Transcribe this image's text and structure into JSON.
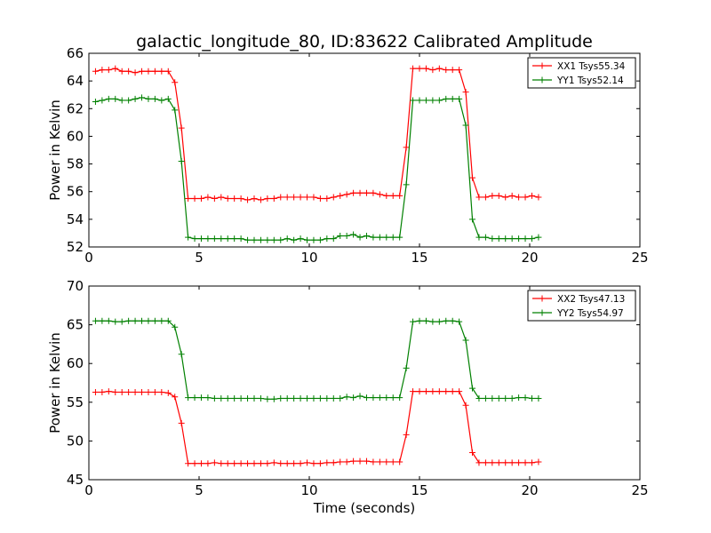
{
  "chart_data": [
    {
      "type": "line",
      "title": "galactic_longitude_80, ID:83622 Calibrated Amplitude",
      "xlabel": "",
      "ylabel": "Power in Kelvin",
      "xlim": [
        0,
        25
      ],
      "ylim": [
        52,
        66
      ],
      "xticks": [
        0,
        5,
        10,
        15,
        20,
        25
      ],
      "yticks": [
        52,
        54,
        56,
        58,
        60,
        62,
        64,
        66
      ],
      "grid": false,
      "legend_position": "top-right",
      "series": [
        {
          "name": "XX1 Tsys55.34",
          "color": "#ff0000",
          "x": [
            0.3,
            0.6,
            0.9,
            1.2,
            1.5,
            1.8,
            2.1,
            2.4,
            2.7,
            3.0,
            3.3,
            3.6,
            3.9,
            4.2,
            4.5,
            4.8,
            5.1,
            5.4,
            5.7,
            6.0,
            6.3,
            6.6,
            6.9,
            7.2,
            7.5,
            7.8,
            8.1,
            8.4,
            8.7,
            9.0,
            9.3,
            9.6,
            9.9,
            10.2,
            10.5,
            10.8,
            11.1,
            11.4,
            11.7,
            12.0,
            12.3,
            12.6,
            12.9,
            13.2,
            13.5,
            13.8,
            14.1,
            14.4,
            14.7,
            15.0,
            15.3,
            15.6,
            15.9,
            16.2,
            16.5,
            16.8,
            17.1,
            17.4,
            17.7,
            18.0,
            18.3,
            18.6,
            18.9,
            19.2,
            19.5,
            19.8,
            20.1,
            20.4
          ],
          "y": [
            64.7,
            64.8,
            64.8,
            64.9,
            64.7,
            64.7,
            64.6,
            64.7,
            64.7,
            64.7,
            64.7,
            64.7,
            63.9,
            60.6,
            55.5,
            55.5,
            55.5,
            55.6,
            55.5,
            55.6,
            55.5,
            55.5,
            55.5,
            55.4,
            55.5,
            55.4,
            55.5,
            55.5,
            55.6,
            55.6,
            55.6,
            55.6,
            55.6,
            55.6,
            55.5,
            55.5,
            55.6,
            55.7,
            55.8,
            55.9,
            55.9,
            55.9,
            55.9,
            55.8,
            55.7,
            55.7,
            55.7,
            59.2,
            64.9,
            64.9,
            64.9,
            64.8,
            64.9,
            64.8,
            64.8,
            64.8,
            63.2,
            57.0,
            55.6,
            55.6,
            55.7,
            55.7,
            55.6,
            55.7,
            55.6,
            55.6,
            55.7,
            55.6
          ]
        },
        {
          "name": "YY1 Tsys52.14",
          "color": "#008000",
          "x": [
            0.3,
            0.6,
            0.9,
            1.2,
            1.5,
            1.8,
            2.1,
            2.4,
            2.7,
            3.0,
            3.3,
            3.6,
            3.9,
            4.2,
            4.5,
            4.8,
            5.1,
            5.4,
            5.7,
            6.0,
            6.3,
            6.6,
            6.9,
            7.2,
            7.5,
            7.8,
            8.1,
            8.4,
            8.7,
            9.0,
            9.3,
            9.6,
            9.9,
            10.2,
            10.5,
            10.8,
            11.1,
            11.4,
            11.7,
            12.0,
            12.3,
            12.6,
            12.9,
            13.2,
            13.5,
            13.8,
            14.1,
            14.4,
            14.7,
            15.0,
            15.3,
            15.6,
            15.9,
            16.2,
            16.5,
            16.8,
            17.1,
            17.4,
            17.7,
            18.0,
            18.3,
            18.6,
            18.9,
            19.2,
            19.5,
            19.8,
            20.1,
            20.4
          ],
          "y": [
            62.5,
            62.6,
            62.7,
            62.7,
            62.6,
            62.6,
            62.7,
            62.8,
            62.7,
            62.7,
            62.6,
            62.7,
            61.9,
            58.2,
            52.7,
            52.6,
            52.6,
            52.6,
            52.6,
            52.6,
            52.6,
            52.6,
            52.6,
            52.5,
            52.5,
            52.5,
            52.5,
            52.5,
            52.5,
            52.6,
            52.5,
            52.6,
            52.5,
            52.5,
            52.5,
            52.6,
            52.6,
            52.8,
            52.8,
            52.9,
            52.7,
            52.8,
            52.7,
            52.7,
            52.7,
            52.7,
            52.7,
            56.5,
            62.6,
            62.6,
            62.6,
            62.6,
            62.6,
            62.7,
            62.7,
            62.7,
            60.8,
            54.0,
            52.7,
            52.7,
            52.6,
            52.6,
            52.6,
            52.6,
            52.6,
            52.6,
            52.6,
            52.7
          ]
        }
      ]
    },
    {
      "type": "line",
      "title": "",
      "xlabel": "Time (seconds)",
      "ylabel": "Power in Kelvin",
      "xlim": [
        0,
        25
      ],
      "ylim": [
        45,
        70
      ],
      "xticks": [
        0,
        5,
        10,
        15,
        20,
        25
      ],
      "yticks": [
        45,
        50,
        55,
        60,
        65,
        70
      ],
      "grid": false,
      "legend_position": "top-right",
      "series": [
        {
          "name": "XX2 Tsys47.13",
          "color": "#ff0000",
          "x": [
            0.3,
            0.6,
            0.9,
            1.2,
            1.5,
            1.8,
            2.1,
            2.4,
            2.7,
            3.0,
            3.3,
            3.6,
            3.9,
            4.2,
            4.5,
            4.8,
            5.1,
            5.4,
            5.7,
            6.0,
            6.3,
            6.6,
            6.9,
            7.2,
            7.5,
            7.8,
            8.1,
            8.4,
            8.7,
            9.0,
            9.3,
            9.6,
            9.9,
            10.2,
            10.5,
            10.8,
            11.1,
            11.4,
            11.7,
            12.0,
            12.3,
            12.6,
            12.9,
            13.2,
            13.5,
            13.8,
            14.1,
            14.4,
            14.7,
            15.0,
            15.3,
            15.6,
            15.9,
            16.2,
            16.5,
            16.8,
            17.1,
            17.4,
            17.7,
            18.0,
            18.3,
            18.6,
            18.9,
            19.2,
            19.5,
            19.8,
            20.1,
            20.4
          ],
          "y": [
            56.3,
            56.3,
            56.4,
            56.3,
            56.3,
            56.3,
            56.3,
            56.3,
            56.3,
            56.3,
            56.3,
            56.2,
            55.7,
            52.3,
            47.1,
            47.1,
            47.1,
            47.1,
            47.2,
            47.1,
            47.1,
            47.1,
            47.1,
            47.1,
            47.1,
            47.1,
            47.1,
            47.2,
            47.1,
            47.1,
            47.1,
            47.1,
            47.2,
            47.1,
            47.1,
            47.2,
            47.2,
            47.3,
            47.3,
            47.4,
            47.4,
            47.4,
            47.3,
            47.3,
            47.3,
            47.3,
            47.3,
            50.8,
            56.4,
            56.4,
            56.4,
            56.4,
            56.4,
            56.4,
            56.4,
            56.4,
            54.6,
            48.5,
            47.2,
            47.2,
            47.2,
            47.2,
            47.2,
            47.2,
            47.2,
            47.2,
            47.2,
            47.3
          ]
        },
        {
          "name": "YY2 Tsys54.97",
          "color": "#008000",
          "x": [
            0.3,
            0.6,
            0.9,
            1.2,
            1.5,
            1.8,
            2.1,
            2.4,
            2.7,
            3.0,
            3.3,
            3.6,
            3.9,
            4.2,
            4.5,
            4.8,
            5.1,
            5.4,
            5.7,
            6.0,
            6.3,
            6.6,
            6.9,
            7.2,
            7.5,
            7.8,
            8.1,
            8.4,
            8.7,
            9.0,
            9.3,
            9.6,
            9.9,
            10.2,
            10.5,
            10.8,
            11.1,
            11.4,
            11.7,
            12.0,
            12.3,
            12.6,
            12.9,
            13.2,
            13.5,
            13.8,
            14.1,
            14.4,
            14.7,
            15.0,
            15.3,
            15.6,
            15.9,
            16.2,
            16.5,
            16.8,
            17.1,
            17.4,
            17.7,
            18.0,
            18.3,
            18.6,
            18.9,
            19.2,
            19.5,
            19.8,
            20.1,
            20.4
          ],
          "y": [
            65.5,
            65.5,
            65.5,
            65.4,
            65.4,
            65.5,
            65.5,
            65.5,
            65.5,
            65.5,
            65.5,
            65.5,
            64.7,
            61.2,
            55.6,
            55.6,
            55.6,
            55.6,
            55.5,
            55.5,
            55.5,
            55.5,
            55.5,
            55.5,
            55.5,
            55.5,
            55.4,
            55.4,
            55.5,
            55.5,
            55.5,
            55.5,
            55.5,
            55.5,
            55.5,
            55.5,
            55.5,
            55.5,
            55.7,
            55.6,
            55.8,
            55.6,
            55.6,
            55.6,
            55.6,
            55.6,
            55.6,
            59.4,
            65.4,
            65.5,
            65.5,
            65.4,
            65.4,
            65.5,
            65.5,
            65.4,
            63.0,
            56.8,
            55.5,
            55.5,
            55.5,
            55.5,
            55.5,
            55.5,
            55.6,
            55.6,
            55.5,
            55.5
          ]
        }
      ]
    }
  ]
}
